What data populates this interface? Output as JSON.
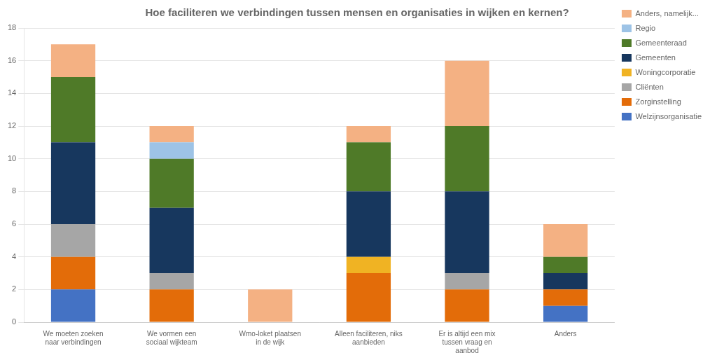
{
  "chart_data": {
    "type": "bar",
    "title": "Hoe faciliteren we verbindingen tussen mensen en organisaties in wijken en kernen?",
    "categories": [
      "We moeten zoeken\nnaar verbindingen",
      "We vormen een\nsociaal wijkteam",
      "Wmo-loket plaatsen\nin de wijk",
      "Alleen faciliteren, niks\naanbieden",
      "Er is altijd een mix\ntussen vraag en\naanbod",
      "Anders"
    ],
    "series": [
      {
        "name": "Welzijnsorganisatie",
        "color": "#4472C4",
        "values": [
          2,
          0,
          0,
          0,
          0,
          1
        ]
      },
      {
        "name": "Zorginstelling",
        "color": "#E36C09",
        "values": [
          2,
          2,
          0,
          3,
          2,
          1
        ]
      },
      {
        "name": "Cliënten",
        "color": "#A6A6A6",
        "values": [
          2,
          1,
          0,
          0,
          1,
          0
        ]
      },
      {
        "name": "Woningcorporatie",
        "color": "#F0B323",
        "values": [
          0,
          0,
          0,
          1,
          0,
          0
        ]
      },
      {
        "name": "Gemeenten",
        "color": "#17375E",
        "values": [
          5,
          4,
          0,
          4,
          5,
          1
        ]
      },
      {
        "name": "Gemeenteraad",
        "color": "#4F7A28",
        "values": [
          4,
          3,
          0,
          3,
          4,
          1
        ]
      },
      {
        "name": "Regio",
        "color": "#9DC3E6",
        "values": [
          0,
          1,
          0,
          0,
          0,
          0
        ]
      },
      {
        "name": "Anders, namelijk...",
        "color": "#F4B183",
        "values": [
          2,
          1,
          2,
          1,
          4,
          2
        ]
      }
    ],
    "stacked": true,
    "ylim": [
      0,
      18
    ],
    "yticks": [
      0,
      2,
      4,
      6,
      8,
      10,
      12,
      14,
      16,
      18
    ],
    "grid": true,
    "legend": "right"
  }
}
